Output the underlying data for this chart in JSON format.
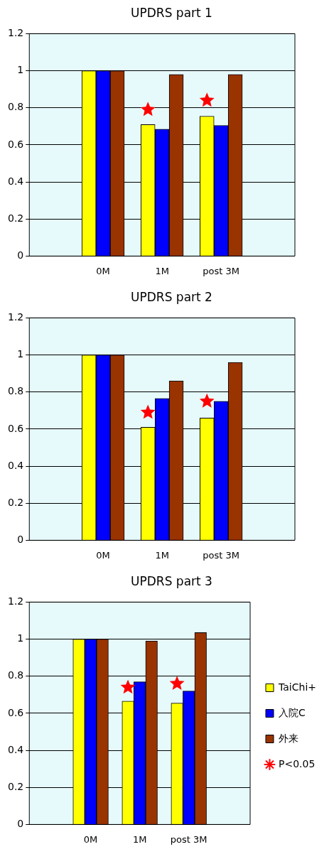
{
  "chart_data": [
    {
      "type": "bar",
      "title": "UPDRS part 1",
      "categories": [
        "0M",
        "1M",
        "post 3M"
      ],
      "ylim": [
        0,
        1.2
      ],
      "yticks": [
        0,
        0.2,
        0.4,
        0.6,
        0.8,
        1,
        1.2
      ],
      "grid": "y",
      "legend": false,
      "series": [
        {
          "color": "#ffff00",
          "values": [
            1,
            0.71,
            0.755
          ]
        },
        {
          "color": "#0000ff",
          "values": [
            1,
            0.685,
            0.705
          ]
        },
        {
          "color": "#993300",
          "values": [
            1,
            0.98,
            0.98
          ]
        },
        {
          "type": "scatter",
          "marker": "star",
          "color": "#ff0000",
          "x": [
            "1M",
            "post 3M"
          ],
          "values": [
            0.79,
            0.84
          ]
        }
      ]
    },
    {
      "type": "bar",
      "title": "UPDRS part 2",
      "categories": [
        "0M",
        "1M",
        "post 3M"
      ],
      "ylim": [
        0,
        1.2
      ],
      "yticks": [
        0,
        0.2,
        0.4,
        0.6,
        0.8,
        1,
        1.2
      ],
      "grid": "y",
      "legend": false,
      "series": [
        {
          "color": "#ffff00",
          "values": [
            1,
            0.61,
            0.66
          ]
        },
        {
          "color": "#0000ff",
          "values": [
            1,
            0.765,
            0.75
          ]
        },
        {
          "color": "#993300",
          "values": [
            1,
            0.86,
            0.96
          ]
        },
        {
          "type": "scatter",
          "marker": "star",
          "color": "#ff0000",
          "x": [
            "1M",
            "post 3M"
          ],
          "values": [
            0.69,
            0.75
          ]
        }
      ]
    },
    {
      "type": "bar",
      "title": "UPDRS part 3",
      "categories": [
        "0M",
        "1M",
        "post 3M"
      ],
      "ylim": [
        0,
        1.2
      ],
      "yticks": [
        0,
        0.2,
        0.4,
        0.6,
        0.8,
        1,
        1.2
      ],
      "grid": "y",
      "legend": "right",
      "series": [
        {
          "name": "TaiChi+",
          "color": "#ffff00",
          "values": [
            1,
            0.665,
            0.655
          ]
        },
        {
          "name": "入院C",
          "color": "#0000ff",
          "values": [
            1,
            0.77,
            0.72
          ]
        },
        {
          "name": "外来",
          "color": "#993300",
          "values": [
            1,
            0.99,
            1.035
          ]
        },
        {
          "name": "P<0.05",
          "type": "scatter",
          "marker": "star",
          "color": "#ff0000",
          "x": [
            "1M",
            "post 3M"
          ],
          "values": [
            0.74,
            0.76
          ]
        }
      ]
    }
  ]
}
